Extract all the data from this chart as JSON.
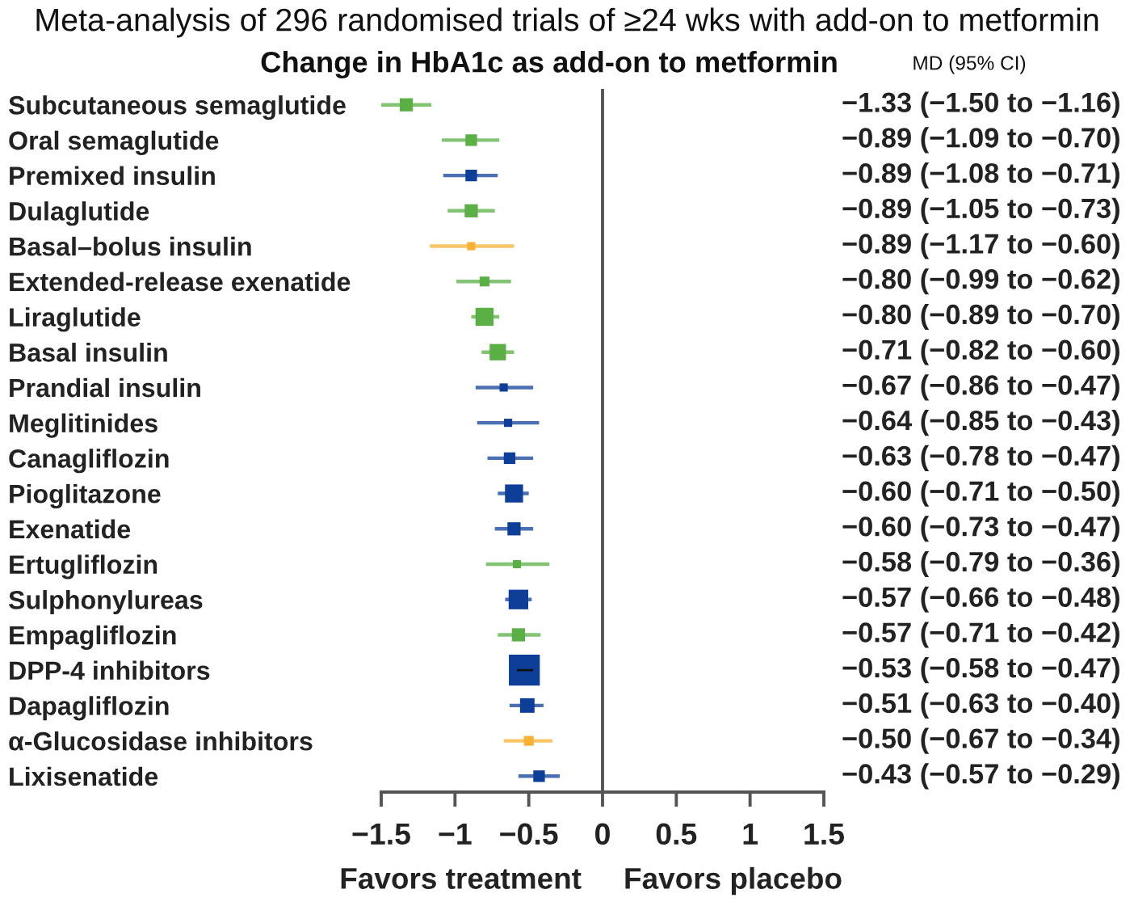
{
  "chart_data": {
    "type": "scatter",
    "orientation": "horizontal",
    "title": "Meta-analysis of 296 randomised trials of ≥24 wks with add-on to metformin",
    "subtitle": "Change in HbA1c as add-on to metformin",
    "annotations": [
      "MD (95% CI)",
      "Favors treatment",
      "Favors placebo"
    ],
    "categories": [
      "Subcutaneous semaglutide",
      "Oral semaglutide",
      "Premixed insulin",
      "Dulaglutide",
      "Basal–bolus insulin",
      "Extended-release exenatide",
      "Liraglutide",
      "Basal insulin",
      "Prandial insulin",
      "Meglitinides",
      "Canagliflozin",
      "Pioglitazone",
      "Exenatide",
      "Ertugliflozin",
      "Sulphonylureas",
      "Empagliflozin",
      "DPP-4 inhibitors",
      "Dapagliflozin",
      "α-Glucosidase inhibitors",
      "Lixisenatide"
    ],
    "values": [
      -1.33,
      -0.89,
      -0.89,
      -0.89,
      -0.89,
      -0.8,
      -0.8,
      -0.71,
      -0.67,
      -0.64,
      -0.63,
      -0.6,
      -0.6,
      -0.58,
      -0.57,
      -0.57,
      -0.53,
      -0.51,
      -0.5,
      -0.43
    ],
    "errors": [
      [
        -1.5,
        -1.16
      ],
      [
        -1.09,
        -0.7
      ],
      [
        -1.08,
        -0.71
      ],
      [
        -1.05,
        -0.73
      ],
      [
        -1.17,
        -0.6
      ],
      [
        -0.99,
        -0.62
      ],
      [
        -0.89,
        -0.7
      ],
      [
        -0.82,
        -0.6
      ],
      [
        -0.86,
        -0.47
      ],
      [
        -0.85,
        -0.43
      ],
      [
        -0.78,
        -0.47
      ],
      [
        -0.71,
        -0.5
      ],
      [
        -0.73,
        -0.47
      ],
      [
        -0.79,
        -0.36
      ],
      [
        -0.66,
        -0.48
      ],
      [
        -0.71,
        -0.42
      ],
      [
        -0.58,
        -0.47
      ],
      [
        -0.63,
        -0.4
      ],
      [
        -0.67,
        -0.34
      ],
      [
        -0.57,
        -0.29
      ]
    ],
    "sizes": [
      0.18,
      0.14,
      0.14,
      0.18,
      0.07,
      0.1,
      0.34,
      0.28,
      0.07,
      0.07,
      0.14,
      0.34,
      0.18,
      0.07,
      0.4,
      0.18,
      1,
      0.22,
      0.1,
      0.14
    ],
    "colors": [
      "#5aaf45",
      "#5aaf45",
      "#0d3f99",
      "#5aaf45",
      "#f8b133",
      "#5aaf45",
      "#5aaf45",
      "#5aaf45",
      "#0d3f99",
      "#0d3f99",
      "#0d3f99",
      "#0d3f99",
      "#0d3f99",
      "#5aaf45",
      "#0d3f99",
      "#5aaf45",
      "#0d3f99",
      "#0d3f99",
      "#f8b133",
      "#0d3f99"
    ],
    "value_labels": [
      "−1.33 (−1.50 to −1.16)",
      "−0.89 (−1.09 to −0.70)",
      "−0.89 (−1.08 to −0.71)",
      "−0.89 (−1.05 to −0.73)",
      "−0.89 (−1.17 to −0.60)",
      "−0.80 (−0.99 to −0.62)",
      "−0.80 (−0.89 to −0.70)",
      "−0.71 (−0.82 to −0.60)",
      "−0.67 (−0.86 to −0.47)",
      "−0.64 (−0.85 to −0.43)",
      "−0.63 (−0.78 to −0.47)",
      "−0.60 (−0.71 to −0.50)",
      "−0.60 (−0.73 to −0.47)",
      "−0.58 (−0.79 to −0.36)",
      "−0.57 (−0.66 to −0.48)",
      "−0.57 (−0.71 to −0.42)",
      "−0.53 (−0.58 to −0.47)",
      "−0.51 (−0.63 to −0.40)",
      "−0.50 (−0.67 to −0.34)",
      "−0.43 (−0.57 to −0.29)"
    ],
    "marker": "square",
    "xlim": [
      -1.5,
      1.5
    ],
    "xticks": [
      {
        "value": -1.5,
        "label": "−1.5"
      },
      {
        "value": -1,
        "label": "−1"
      },
      {
        "value": -0.5,
        "label": "−0.5"
      },
      0,
      0.5,
      1,
      1.5
    ],
    "ref_lines": [
      {
        "axis": "x",
        "value": 0,
        "color": "#555555"
      }
    ]
  }
}
